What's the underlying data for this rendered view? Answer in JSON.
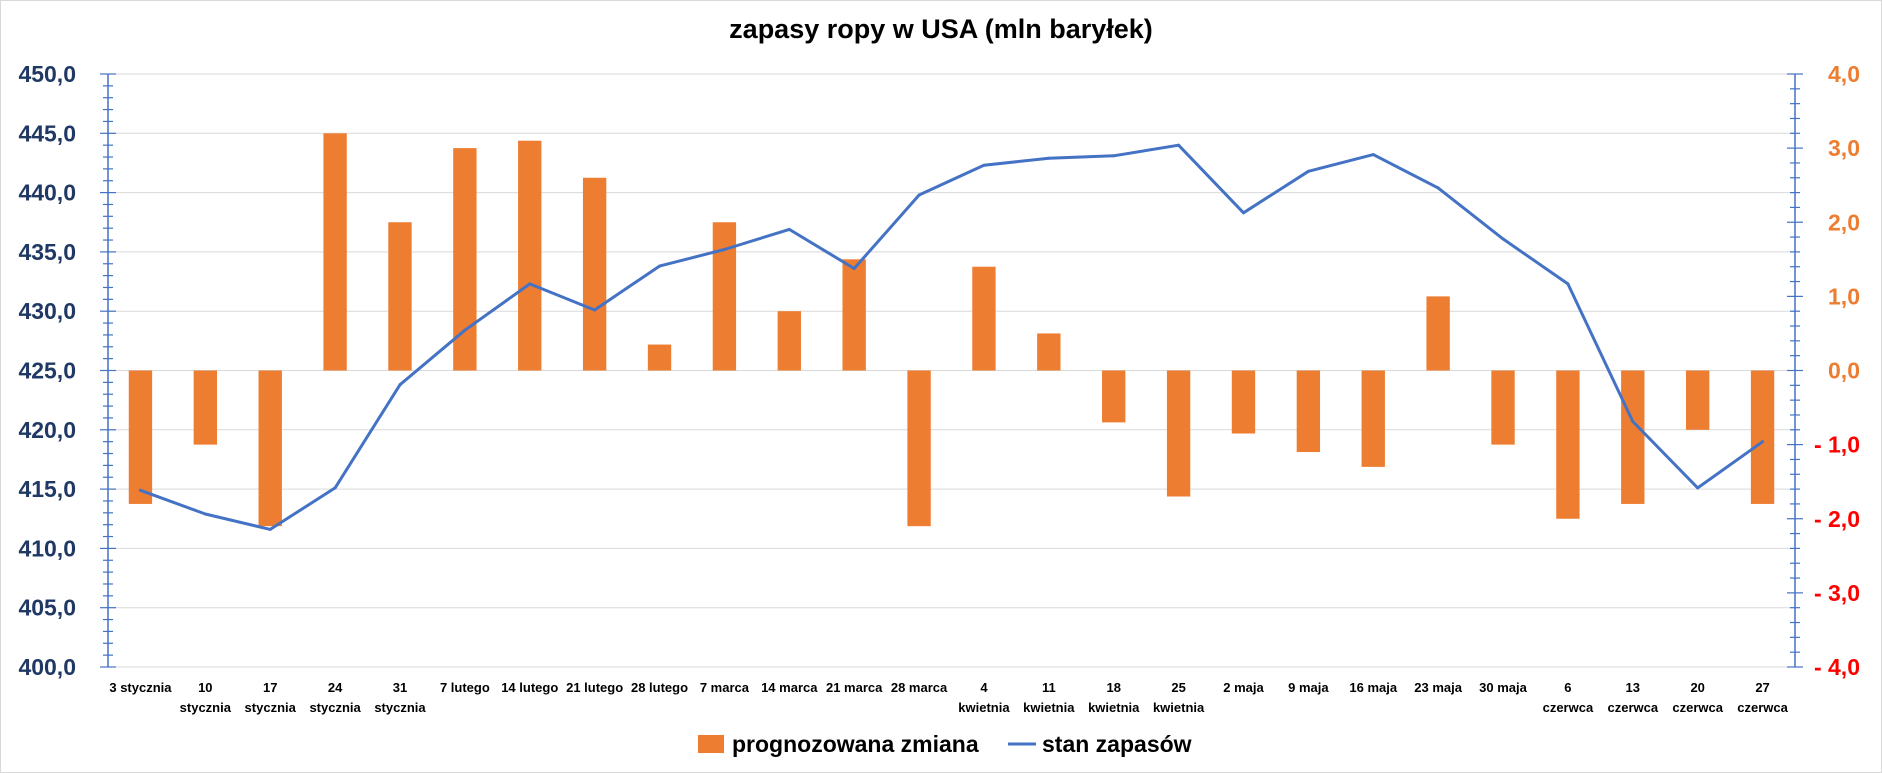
{
  "chart_data": {
    "type": "bar",
    "title": "zapasy ropy w USA (mln baryłek)",
    "categories": [
      [
        "3 stycznia"
      ],
      [
        "10",
        "stycznia"
      ],
      [
        "17",
        "stycznia"
      ],
      [
        "24",
        "stycznia"
      ],
      [
        "31",
        "stycznia"
      ],
      [
        "7 lutego"
      ],
      [
        "14 lutego"
      ],
      [
        "21 lutego"
      ],
      [
        "28 lutego"
      ],
      [
        "7 marca"
      ],
      [
        "14 marca"
      ],
      [
        "21 marca"
      ],
      [
        "28 marca"
      ],
      [
        "4",
        "kwietnia"
      ],
      [
        "11",
        "kwietnia"
      ],
      [
        "18",
        "kwietnia"
      ],
      [
        "25",
        "kwietnia"
      ],
      [
        "2 maja"
      ],
      [
        "9 maja"
      ],
      [
        "16 maja"
      ],
      [
        "23 maja"
      ],
      [
        "30 maja"
      ],
      [
        "6",
        "czerwca"
      ],
      [
        "13",
        "czerwca"
      ],
      [
        "20",
        "czerwca"
      ],
      [
        "27",
        "czerwca"
      ]
    ],
    "series": [
      {
        "name": "prognozowana zmiana",
        "type": "bar",
        "axis": "right",
        "color": "#ed7d31",
        "values": [
          -1.8,
          -1.0,
          -2.1,
          3.2,
          2.0,
          3.0,
          3.1,
          2.6,
          0.35,
          2.0,
          0.8,
          1.5,
          -2.1,
          1.4,
          0.5,
          -0.7,
          -1.7,
          -0.85,
          -1.1,
          -1.3,
          1.0,
          -1.0,
          -2.0,
          -1.8,
          -0.8,
          -1.8
        ]
      },
      {
        "name": "stan zapasów",
        "type": "line",
        "axis": "left",
        "color": "#4472c4",
        "values": [
          414.9,
          412.9,
          411.6,
          415.1,
          423.8,
          428.4,
          432.3,
          430.1,
          433.8,
          435.2,
          436.9,
          433.6,
          439.8,
          442.3,
          442.9,
          443.1,
          444.0,
          438.3,
          441.8,
          443.2,
          440.4,
          436.1,
          432.3,
          420.7,
          415.1,
          419.0
        ]
      }
    ],
    "left_axis": {
      "ylim": [
        400,
        450
      ],
      "ticks": [
        "400,0",
        "405,0",
        "410,0",
        "415,0",
        "420,0",
        "425,0",
        "430,0",
        "435,0",
        "440,0",
        "445,0",
        "450,0"
      ],
      "color": "#1f3864"
    },
    "right_axis": {
      "ylim": [
        -4,
        4
      ],
      "ticks": [
        "- 4,0",
        "- 3,0",
        "- 2,0",
        "- 1,0",
        "0,0",
        "1,0",
        "2,0",
        "3,0",
        "4,0"
      ],
      "positive_color": "#ed7d31",
      "negative_color": "#ff0000"
    },
    "grid": true,
    "legend_position": "bottom"
  }
}
